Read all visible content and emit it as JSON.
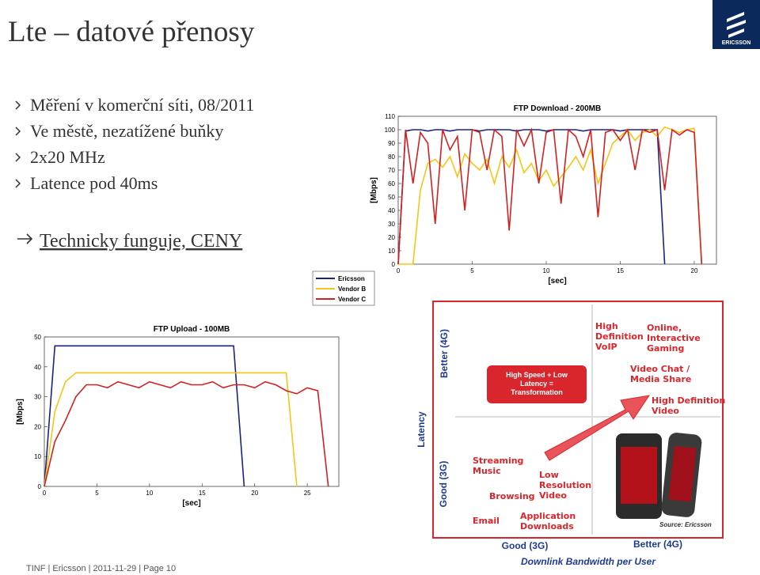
{
  "title": "Lte – datové přenosy",
  "logo": "ERICSSON",
  "bullets": [
    "Měření v komerční síti, 08/2011",
    "Ve městě, nezatížené buňky",
    "2x20 MHz",
    "Latence pod 40ms"
  ],
  "conclusion": "Technicky funguje, CENY",
  "chart_data": [
    {
      "type": "line",
      "title": "FTP Download - 200MB",
      "x_label": "[sec]",
      "y_label": "[Mbps]",
      "x": [
        0,
        0.5,
        1,
        1.5,
        2,
        2.5,
        3,
        3.5,
        4,
        4.5,
        5,
        5.5,
        6,
        6.5,
        7,
        7.5,
        8,
        8.5,
        9,
        9.5,
        10,
        10.5,
        11,
        11.5,
        12,
        12.5,
        13,
        13.5,
        14,
        14.5,
        15,
        15.5,
        16,
        16.5,
        17,
        17.5,
        18,
        18.5,
        19,
        19.5,
        20,
        20.5,
        21
      ],
      "xlim": [
        0,
        21.5
      ],
      "xticks": [
        0,
        5,
        10,
        15,
        20
      ],
      "ylim": [
        0,
        110
      ],
      "yticks": [
        0,
        10,
        20,
        30,
        40,
        50,
        60,
        70,
        80,
        90,
        100,
        110
      ],
      "grid": false,
      "legend": "lower-left",
      "series": [
        {
          "name": "Ericsson",
          "color": "#1a237e",
          "values": [
            0,
            99,
            100,
            100,
            99,
            100,
            100,
            99,
            100,
            100,
            100,
            99,
            100,
            100,
            100,
            100,
            99,
            100,
            100,
            100,
            99,
            100,
            100,
            100,
            100,
            99,
            100,
            100,
            100,
            100,
            99,
            100,
            100,
            100,
            100,
            100,
            0,
            null,
            null,
            null,
            null,
            null,
            null
          ]
        },
        {
          "name": "Vendor B",
          "color": "#f5c518",
          "values": [
            0,
            0,
            0,
            55,
            75,
            78,
            72,
            80,
            65,
            82,
            75,
            70,
            78,
            60,
            80,
            72,
            85,
            68,
            75,
            62,
            70,
            58,
            65,
            72,
            80,
            70,
            85,
            60,
            75,
            90,
            95,
            100,
            92,
            98,
            100,
            95,
            102,
            100,
            98,
            100,
            101,
            0,
            null
          ]
        },
        {
          "name": "Vendor C",
          "color": "#d32020",
          "values": [
            0,
            100,
            60,
            98,
            90,
            30,
            100,
            85,
            95,
            40,
            100,
            98,
            70,
            100,
            95,
            25,
            100,
            88,
            100,
            60,
            98,
            100,
            45,
            100,
            95,
            80,
            100,
            35,
            98,
            100,
            92,
            100,
            70,
            100,
            98,
            100,
            55,
            100,
            96,
            100,
            98,
            0,
            null
          ]
        }
      ]
    },
    {
      "type": "line",
      "title": "FTP Upload - 100MB",
      "x_label": "[sec]",
      "y_label": "[Mbps]",
      "x": [
        0,
        1,
        2,
        3,
        4,
        5,
        6,
        7,
        8,
        9,
        10,
        11,
        12,
        13,
        14,
        15,
        16,
        17,
        18,
        19,
        20,
        21,
        22,
        23,
        24,
        25,
        26,
        27,
        28
      ],
      "xlim": [
        0,
        28
      ],
      "xticks": [
        0,
        5,
        10,
        15,
        20,
        25
      ],
      "ylim": [
        0,
        50
      ],
      "yticks": [
        0,
        10,
        20,
        30,
        40,
        50
      ],
      "grid": false,
      "series": [
        {
          "color": "#1a237e",
          "values": [
            0,
            47,
            47,
            47,
            47,
            47,
            47,
            47,
            47,
            47,
            47,
            47,
            47,
            47,
            47,
            47,
            47,
            47,
            47,
            0,
            null,
            null,
            null,
            null,
            null,
            null,
            null,
            null,
            null
          ]
        },
        {
          "color": "#f5c518",
          "values": [
            0,
            25,
            35,
            38,
            38,
            38,
            38,
            38,
            38,
            38,
            38,
            38,
            38,
            38,
            38,
            38,
            38,
            38,
            38,
            38,
            38,
            38,
            38,
            38,
            0,
            null,
            null,
            null,
            null
          ]
        },
        {
          "color": "#d32020",
          "values": [
            0,
            15,
            22,
            30,
            34,
            34,
            33,
            35,
            34,
            33,
            35,
            34,
            33,
            35,
            34,
            34,
            35,
            33,
            34,
            34,
            33,
            35,
            34,
            32,
            31,
            33,
            32,
            0,
            null
          ]
        }
      ]
    }
  ],
  "diagram": {
    "y_axis": "Latency",
    "y_high": "Better (4G)",
    "y_low": "Good (3G)",
    "x_axis": "Downlink Bandwidth per User",
    "x_low": "Good (3G)",
    "x_high": "Better (4G)",
    "callout": [
      "High Speed + Low",
      "Latency =",
      "Transformation"
    ],
    "apps": [
      {
        "lines": [
          "High",
          "Definition",
          "VoIP"
        ]
      },
      {
        "lines": [
          "Online,",
          "Interactive",
          "Gaming"
        ]
      },
      {
        "lines": [
          "Video Chat /",
          "Media Share"
        ]
      },
      {
        "lines": [
          "High Definition",
          "Video"
        ]
      },
      {
        "lines": [
          "Streaming",
          "Music"
        ]
      },
      {
        "lines": [
          "Low",
          "Resolution",
          "Video"
        ]
      },
      {
        "lines": [
          "Browsing"
        ]
      },
      {
        "lines": [
          "Email"
        ]
      },
      {
        "lines": [
          "Application",
          "Downloads"
        ]
      }
    ],
    "source": "Source: Ericsson"
  },
  "footer": "TINF | Ericsson | 2011-11-29 | Page 10"
}
